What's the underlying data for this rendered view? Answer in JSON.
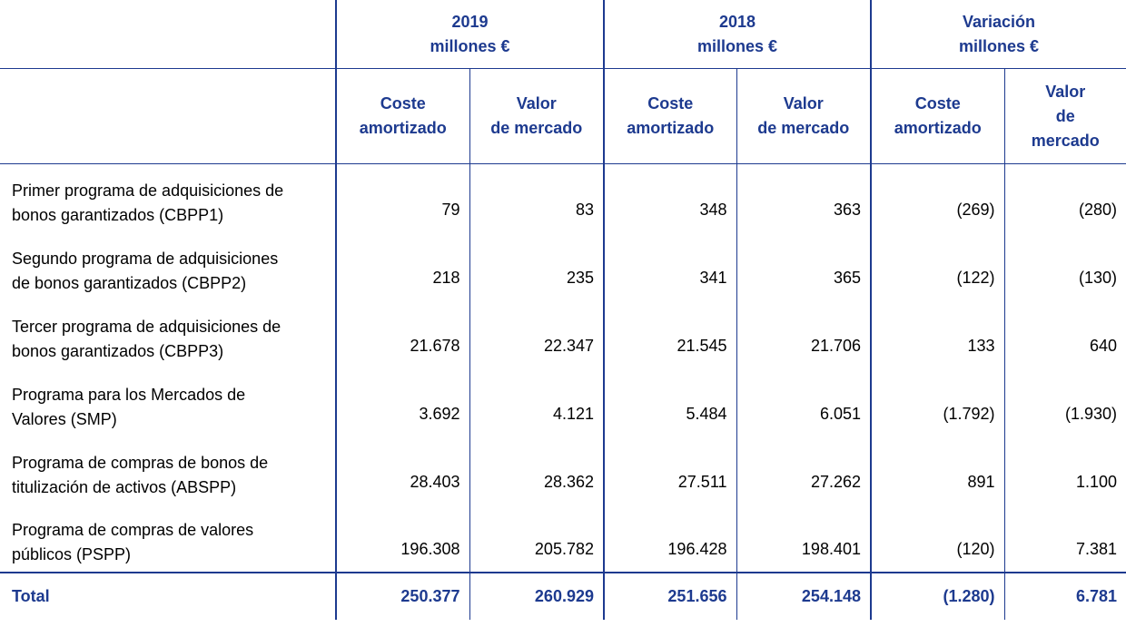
{
  "header": {
    "groups": [
      {
        "year": "2019",
        "unit": "millones €"
      },
      {
        "year": "2018",
        "unit": "millones €"
      },
      {
        "year": "Variación",
        "unit": "millones €"
      }
    ],
    "sub": {
      "cost_l1": "Coste",
      "cost_l2": "amortizado",
      "mv_l1": "Valor",
      "mv_l2": "de mercado",
      "var_mv_l1": "Valor",
      "var_mv_l2": "de",
      "var_mv_l3": "mercado"
    }
  },
  "rows": [
    {
      "l1": "Primer programa de adquisiciones de",
      "l2": "bonos garantizados (CBPP1)",
      "v": [
        "79",
        "83",
        "348",
        "363",
        "(269)",
        "(280)"
      ]
    },
    {
      "l1": "Segundo programa de adquisiciones",
      "l2": "de bonos garantizados (CBPP2)",
      "v": [
        "218",
        "235",
        "341",
        "365",
        "(122)",
        "(130)"
      ]
    },
    {
      "l1": "Tercer programa de adquisiciones de",
      "l2": "bonos garantizados (CBPP3)",
      "v": [
        "21.678",
        "22.347",
        "21.545",
        "21.706",
        "133",
        "640"
      ]
    },
    {
      "l1": "Programa para los Mercados de",
      "l2": "Valores (SMP)",
      "v": [
        "3.692",
        "4.121",
        "5.484",
        "6.051",
        "(1.792)",
        "(1.930)"
      ]
    },
    {
      "l1": "Programa de compras de bonos de",
      "l2": "titulización de activos (ABSPP)",
      "v": [
        "28.403",
        "28.362",
        "27.511",
        "27.262",
        "891",
        "1.100"
      ]
    },
    {
      "l1": "Programa de compras de valores",
      "l2": "públicos (PSPP)",
      "v": [
        "196.308",
        "205.782",
        "196.428",
        "198.401",
        "(120)",
        "7.381"
      ]
    }
  ],
  "total": {
    "label": "Total",
    "v": [
      "250.377",
      "260.929",
      "251.656",
      "254.148",
      "(1.280)",
      "6.781"
    ]
  },
  "colors": {
    "accent": "#1d3a8f"
  }
}
